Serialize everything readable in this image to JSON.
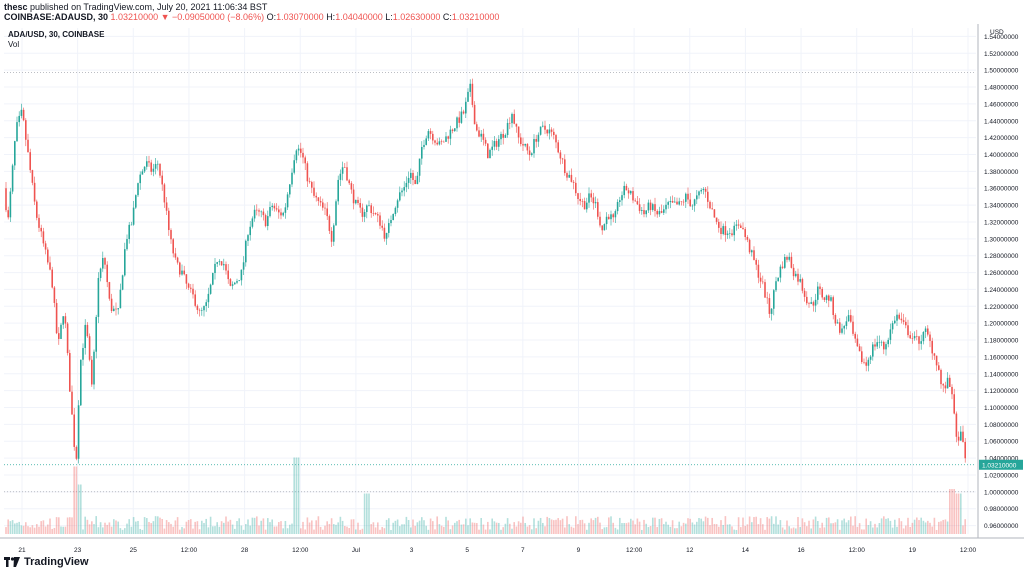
{
  "header": {
    "publisher": "thesc",
    "published_text": "published on TradingView.com, July 20, 2021 11:06:34 BST",
    "symbol_full": "COINBASE:ADAUSD, 30",
    "change": "1.03210000 ▼ −0.09050000 (−8.06%)",
    "o_label": "O:",
    "o": "1.03070000",
    "h_label": "H:",
    "h": "1.04040000",
    "l_label": "L:",
    "l": "1.02630000",
    "c_label": "C:",
    "c": "1.03210000"
  },
  "legend": {
    "symbol": "ADA/USD, 30, COINBASE",
    "volume": "Vol"
  },
  "footer": {
    "brand": "TradingView"
  },
  "colors": {
    "up": "#26a69a",
    "down": "#ef5350",
    "grid": "#f0f3fa",
    "last_price": "#26a69a"
  },
  "chart_data": {
    "type": "candlestick",
    "currency": "USD",
    "ylim": [
      0.95,
      1.55
    ],
    "y_ticks": [
      "1.54000000",
      "1.52000000",
      "1.50000000",
      "1.48000000",
      "1.46000000",
      "1.44000000",
      "1.42000000",
      "1.40000000",
      "1.38000000",
      "1.36000000",
      "1.34000000",
      "1.32000000",
      "1.30000000",
      "1.28000000",
      "1.26000000",
      "1.24000000",
      "1.22000000",
      "1.20000000",
      "1.18000000",
      "1.16000000",
      "1.14000000",
      "1.12000000",
      "1.10000000",
      "1.08000000",
      "1.06000000",
      "1.04000000",
      "1.02000000",
      "1.00000000",
      "0.98000000",
      "0.96000000"
    ],
    "x_ticks": [
      "21",
      "23",
      "25",
      "12:00",
      "28",
      "12:00",
      "Jul",
      "3",
      "5",
      "7",
      "9",
      "12:00",
      "12",
      "14",
      "16",
      "12:00",
      "19",
      "12:00"
    ],
    "last_price": 1.0321,
    "last_price_label": "1.03210000",
    "high_marker": 1.497,
    "low_marker": 1.0,
    "price_path": [
      [
        0,
        1.4
      ],
      [
        8,
        1.32
      ],
      [
        16,
        1.43
      ],
      [
        22,
        1.45
      ],
      [
        28,
        1.4
      ],
      [
        36,
        1.33
      ],
      [
        44,
        1.29
      ],
      [
        52,
        1.25
      ],
      [
        58,
        1.17
      ],
      [
        64,
        1.22
      ],
      [
        70,
        1.12
      ],
      [
        76,
        1.03
      ],
      [
        80,
        1.15
      ],
      [
        86,
        1.2
      ],
      [
        92,
        1.12
      ],
      [
        98,
        1.25
      ],
      [
        104,
        1.28
      ],
      [
        110,
        1.22
      ],
      [
        118,
        1.21
      ],
      [
        126,
        1.3
      ],
      [
        132,
        1.32
      ],
      [
        138,
        1.37
      ],
      [
        146,
        1.39
      ],
      [
        152,
        1.38
      ],
      [
        158,
        1.39
      ],
      [
        164,
        1.35
      ],
      [
        170,
        1.3
      ],
      [
        176,
        1.27
      ],
      [
        182,
        1.26
      ],
      [
        188,
        1.24
      ],
      [
        194,
        1.23
      ],
      [
        200,
        1.21
      ],
      [
        206,
        1.22
      ],
      [
        212,
        1.25
      ],
      [
        218,
        1.28
      ],
      [
        224,
        1.27
      ],
      [
        230,
        1.24
      ],
      [
        236,
        1.25
      ],
      [
        242,
        1.26
      ],
      [
        248,
        1.31
      ],
      [
        254,
        1.33
      ],
      [
        260,
        1.33
      ],
      [
        266,
        1.32
      ],
      [
        272,
        1.34
      ],
      [
        278,
        1.33
      ],
      [
        284,
        1.33
      ],
      [
        290,
        1.37
      ],
      [
        296,
        1.41
      ],
      [
        302,
        1.4
      ],
      [
        308,
        1.37
      ],
      [
        314,
        1.35
      ],
      [
        320,
        1.34
      ],
      [
        326,
        1.33
      ],
      [
        332,
        1.3
      ],
      [
        338,
        1.37
      ],
      [
        344,
        1.39
      ],
      [
        350,
        1.36
      ],
      [
        356,
        1.34
      ],
      [
        362,
        1.33
      ],
      [
        368,
        1.34
      ],
      [
        374,
        1.33
      ],
      [
        380,
        1.32
      ],
      [
        386,
        1.3
      ],
      [
        392,
        1.33
      ],
      [
        398,
        1.35
      ],
      [
        404,
        1.36
      ],
      [
        410,
        1.38
      ],
      [
        416,
        1.36
      ],
      [
        422,
        1.41
      ],
      [
        428,
        1.43
      ],
      [
        434,
        1.42
      ],
      [
        440,
        1.41
      ],
      [
        446,
        1.42
      ],
      [
        452,
        1.43
      ],
      [
        458,
        1.44
      ],
      [
        464,
        1.45
      ],
      [
        470,
        1.48
      ],
      [
        476,
        1.43
      ],
      [
        482,
        1.42
      ],
      [
        488,
        1.4
      ],
      [
        494,
        1.41
      ],
      [
        500,
        1.42
      ],
      [
        506,
        1.43
      ],
      [
        512,
        1.45
      ],
      [
        518,
        1.42
      ],
      [
        524,
        1.41
      ],
      [
        530,
        1.4
      ],
      [
        536,
        1.42
      ],
      [
        542,
        1.43
      ],
      [
        548,
        1.43
      ],
      [
        554,
        1.42
      ],
      [
        560,
        1.4
      ],
      [
        566,
        1.38
      ],
      [
        572,
        1.37
      ],
      [
        578,
        1.35
      ],
      [
        584,
        1.34
      ],
      [
        590,
        1.35
      ],
      [
        596,
        1.34
      ],
      [
        602,
        1.31
      ],
      [
        608,
        1.33
      ],
      [
        614,
        1.32
      ],
      [
        620,
        1.35
      ],
      [
        626,
        1.36
      ],
      [
        632,
        1.35
      ],
      [
        638,
        1.34
      ],
      [
        644,
        1.33
      ],
      [
        650,
        1.34
      ],
      [
        656,
        1.33
      ],
      [
        662,
        1.33
      ],
      [
        668,
        1.34
      ],
      [
        674,
        1.34
      ],
      [
        680,
        1.34
      ],
      [
        686,
        1.35
      ],
      [
        692,
        1.34
      ],
      [
        698,
        1.35
      ],
      [
        704,
        1.36
      ],
      [
        710,
        1.34
      ],
      [
        716,
        1.32
      ],
      [
        722,
        1.31
      ],
      [
        728,
        1.31
      ],
      [
        734,
        1.31
      ],
      [
        740,
        1.32
      ],
      [
        746,
        1.3
      ],
      [
        752,
        1.28
      ],
      [
        758,
        1.26
      ],
      [
        764,
        1.24
      ],
      [
        770,
        1.21
      ],
      [
        776,
        1.25
      ],
      [
        782,
        1.27
      ],
      [
        788,
        1.28
      ],
      [
        794,
        1.26
      ],
      [
        800,
        1.25
      ],
      [
        806,
        1.23
      ],
      [
        812,
        1.22
      ],
      [
        818,
        1.24
      ],
      [
        824,
        1.23
      ],
      [
        830,
        1.23
      ],
      [
        836,
        1.2
      ],
      [
        842,
        1.19
      ],
      [
        848,
        1.21
      ],
      [
        854,
        1.18
      ],
      [
        860,
        1.16
      ],
      [
        866,
        1.15
      ],
      [
        872,
        1.17
      ],
      [
        878,
        1.18
      ],
      [
        884,
        1.17
      ],
      [
        890,
        1.19
      ],
      [
        896,
        1.21
      ],
      [
        902,
        1.2
      ],
      [
        908,
        1.19
      ],
      [
        914,
        1.18
      ],
      [
        920,
        1.18
      ],
      [
        926,
        1.19
      ],
      [
        932,
        1.17
      ],
      [
        938,
        1.15
      ],
      [
        942,
        1.12
      ],
      [
        948,
        1.13
      ],
      [
        952,
        1.12
      ],
      [
        956,
        1.06
      ],
      [
        960,
        1.07
      ],
      [
        964,
        1.05
      ],
      [
        966,
        1.03
      ]
    ],
    "volume_spikes": [
      [
        76,
        0.75
      ],
      [
        80,
        0.55
      ],
      [
        296,
        0.85
      ],
      [
        366,
        0.45
      ],
      [
        952,
        0.5
      ],
      [
        958,
        0.45
      ]
    ]
  }
}
